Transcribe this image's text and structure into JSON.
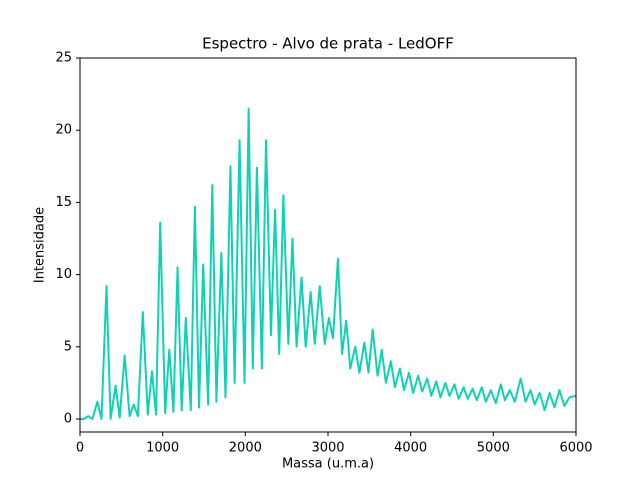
{
  "chart_data": {
    "type": "line",
    "title": "Espectro - Alvo de prata - LedOFF",
    "xlabel": "Massa (u.m.a)",
    "ylabel": "Intensidade",
    "x": [
      0,
      50,
      100,
      150,
      210,
      260,
      320,
      370,
      430,
      480,
      540,
      600,
      650,
      700,
      760,
      820,
      870,
      920,
      970,
      1030,
      1080,
      1130,
      1180,
      1230,
      1280,
      1340,
      1390,
      1440,
      1490,
      1550,
      1600,
      1650,
      1710,
      1760,
      1820,
      1870,
      1930,
      1990,
      2040,
      2090,
      2140,
      2200,
      2250,
      2310,
      2360,
      2410,
      2460,
      2520,
      2570,
      2620,
      2680,
      2730,
      2790,
      2840,
      2900,
      2960,
      3010,
      3060,
      3120,
      3170,
      3220,
      3270,
      3330,
      3380,
      3440,
      3490,
      3540,
      3600,
      3650,
      3700,
      3760,
      3810,
      3870,
      3920,
      3980,
      4030,
      4090,
      4140,
      4200,
      4250,
      4310,
      4360,
      4420,
      4470,
      4530,
      4580,
      4640,
      4690,
      4750,
      4800,
      4860,
      4910,
      4970,
      5030,
      5090,
      5140,
      5200,
      5260,
      5330,
      5390,
      5450,
      5500,
      5560,
      5620,
      5680,
      5740,
      5800,
      5860,
      5920,
      6000
    ],
    "values": [
      0,
      0,
      0.2,
      0,
      1.2,
      0,
      9.2,
      0,
      2.3,
      0.1,
      4.4,
      0.2,
      1.0,
      0.2,
      7.4,
      0.3,
      3.3,
      0.3,
      13.6,
      0.4,
      4.8,
      0.5,
      10.5,
      0.6,
      7.0,
      0.6,
      14.7,
      0.8,
      10.7,
      1.0,
      16.2,
      1.2,
      11.5,
      1.5,
      17.5,
      2.5,
      19.3,
      2.5,
      21.5,
      3.5,
      17.4,
      3.5,
      19.3,
      5.8,
      14.5,
      4.5,
      15.5,
      5.2,
      12.5,
      5.0,
      9.8,
      5.0,
      8.8,
      5.2,
      9.2,
      5.2,
      7.0,
      5.6,
      11.1,
      4.5,
      6.8,
      3.5,
      5.0,
      3.2,
      5.3,
      3.2,
      6.2,
      3.0,
      4.8,
      2.5,
      4.0,
      2.2,
      3.5,
      2.0,
      3.2,
      1.8,
      3.0,
      1.9,
      2.8,
      1.6,
      2.6,
      1.5,
      2.5,
      1.6,
      2.4,
      1.4,
      2.2,
      1.4,
      2.1,
      1.3,
      2.2,
      1.2,
      2.0,
      1.1,
      2.4,
      1.3,
      2.0,
      1.2,
      2.8,
      1.2,
      2.0,
      1.0,
      1.8,
      0.6,
      1.8,
      0.8,
      2.0,
      0.9,
      1.5,
      1.6
    ],
    "color": "#0fd2b4",
    "xlim": [
      0,
      6000
    ],
    "xticks": [
      0,
      1000,
      2000,
      3000,
      4000,
      5000,
      6000
    ],
    "ylim": [
      -0.9,
      25
    ],
    "yticks": [
      0,
      5,
      10,
      15,
      20,
      25
    ],
    "grid": false
  }
}
